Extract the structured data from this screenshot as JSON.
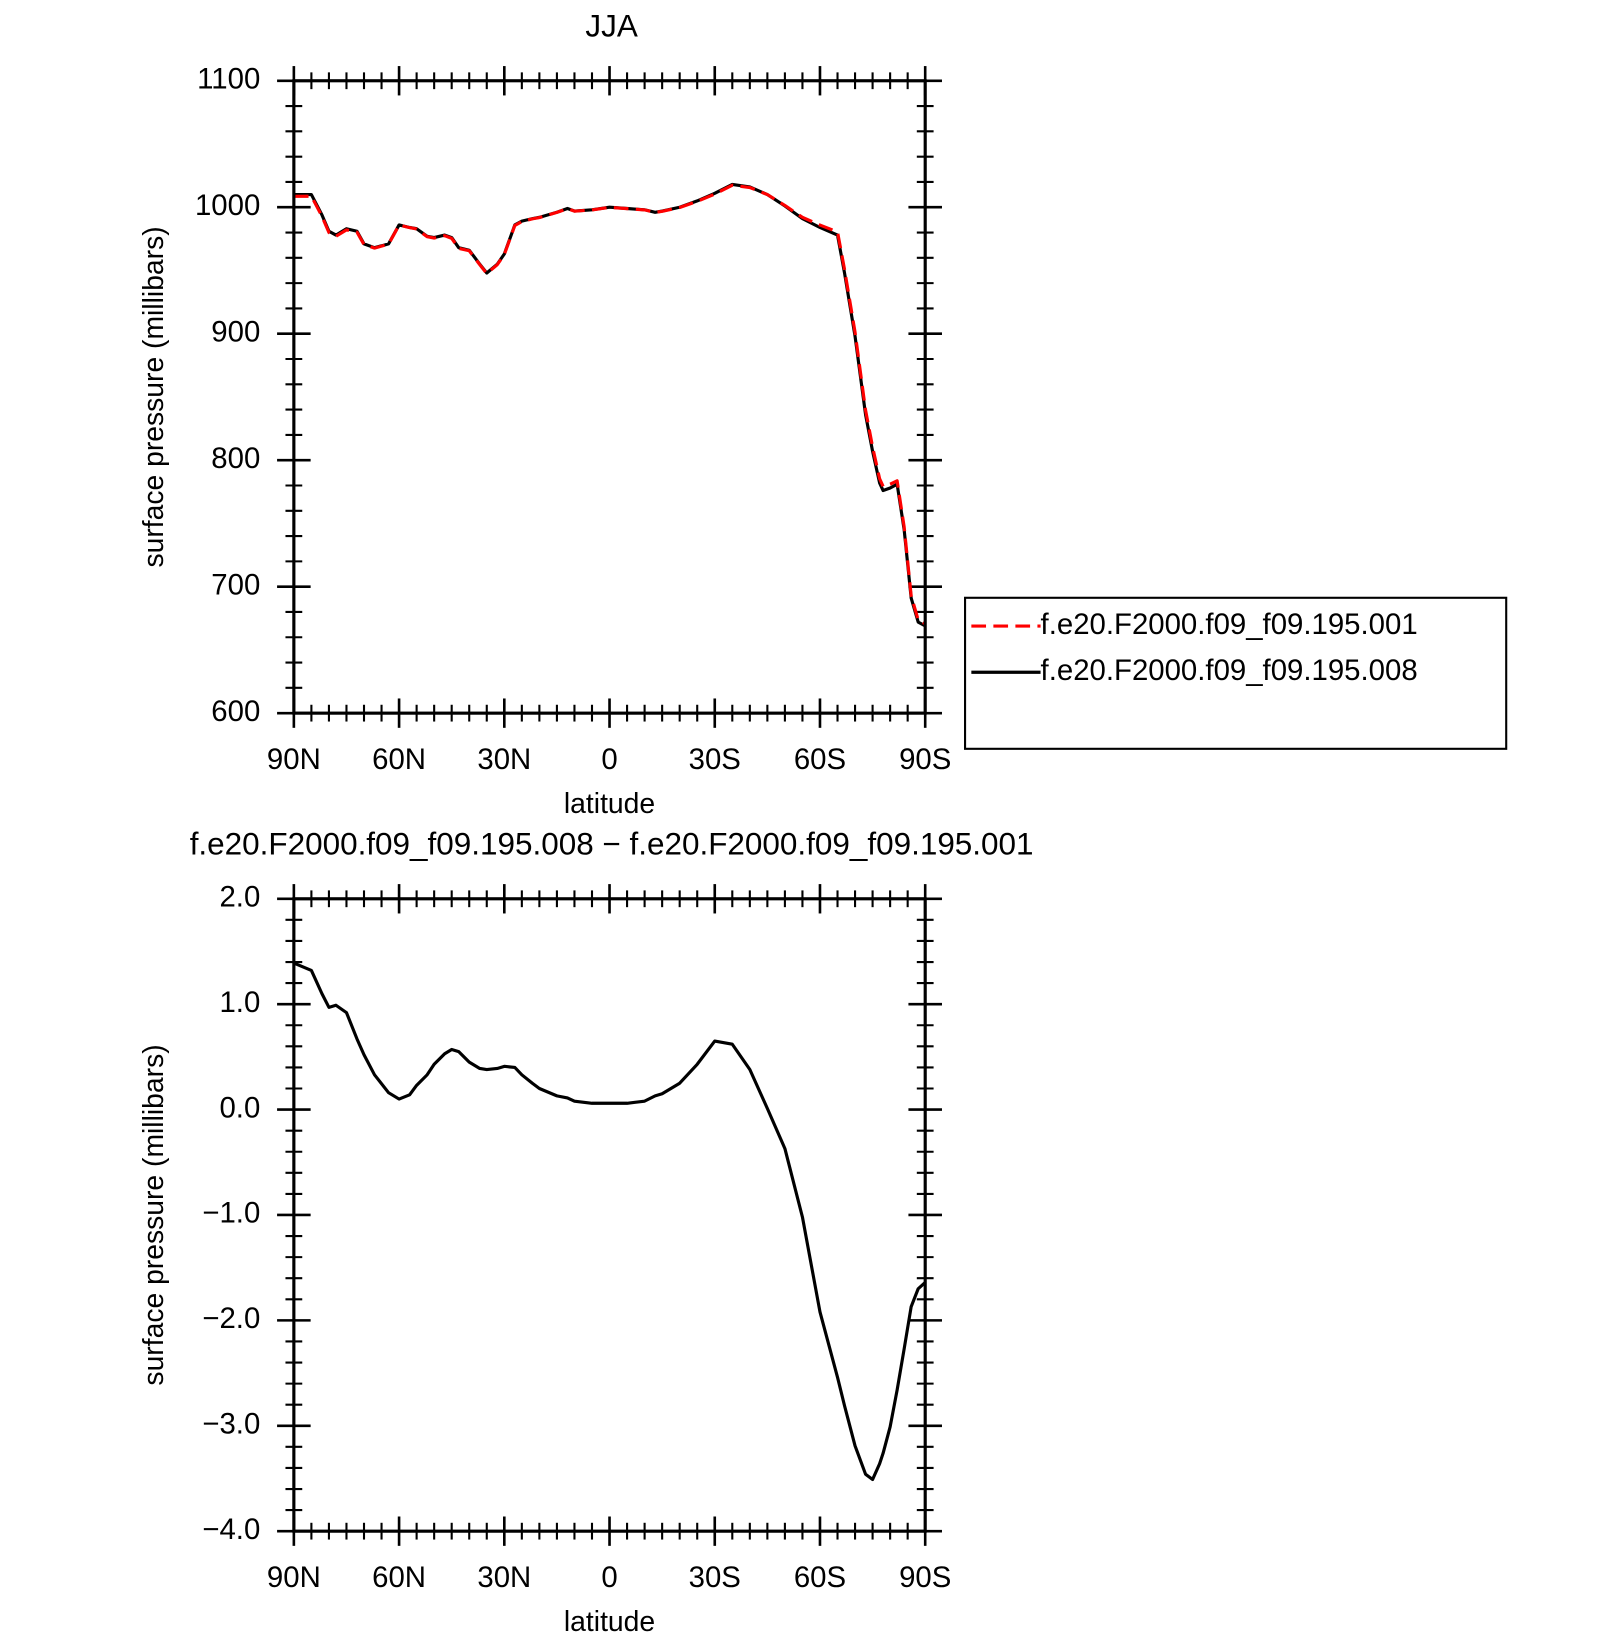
{
  "chart_data": [
    {
      "type": "line",
      "title": "JJA",
      "x_label": "latitude",
      "y_label": "surface pressure (millibars)",
      "x": [
        90,
        85,
        82,
        80,
        78,
        75,
        72,
        70,
        67,
        63,
        60,
        57,
        55,
        52,
        50,
        47,
        45,
        43,
        40,
        37,
        35,
        32,
        30,
        27,
        25,
        22,
        20,
        15,
        12,
        10,
        5,
        0,
        -5,
        -10,
        -13,
        -15,
        -20,
        -25,
        -30,
        -35,
        -40,
        -45,
        -50,
        -55,
        -60,
        -65,
        -67,
        -70,
        -73,
        -75,
        -77,
        -78,
        -80,
        -82,
        -84,
        -86,
        -88,
        -90
      ],
      "series": [
        {
          "name": "f.e20.F2000.f09_f09.195.001",
          "color": "#ff0000",
          "linestyle": "dashed",
          "values": [
            1008.6,
            1008.7,
            992.9,
            980.0,
            977.0,
            982.1,
            980.3,
            970.5,
            967.7,
            970.8,
            985.9,
            983.9,
            982.8,
            976.7,
            975.6,
            977.5,
            975.4,
            967.5,
            965.6,
            954.6,
            947.6,
            954.6,
            962.6,
            985.6,
            988.7,
            990.8,
            991.8,
            995.9,
            998.9,
            996.9,
            997.9,
            999.9,
            998.9,
            997.9,
            995.9,
            996.8,
            999.8,
            1004.6,
            1010.4,
            1017.4,
            1015.6,
            1010.0,
            1001.4,
            992.0,
            985.9,
            980.5,
            950.8,
            901.2,
            839.5,
            810.5,
            785.4,
            779.3,
            781.0,
            783.7,
            747.3,
            692.9,
            673.7,
            670.6
          ]
        },
        {
          "name": "f.e20.F2000.f09_f09.195.008",
          "color": "#000000",
          "linestyle": "solid",
          "values": [
            1010,
            1010,
            994,
            981,
            978,
            983,
            981,
            971,
            968,
            971,
            986,
            984,
            983,
            977,
            976,
            978,
            976,
            968,
            966,
            955,
            948,
            955,
            963,
            986,
            989,
            991,
            992,
            996,
            999,
            997,
            998,
            1000,
            999,
            998,
            996,
            997,
            1000,
            1005,
            1011,
            1018,
            1016,
            1010,
            1001,
            991,
            984,
            978,
            948,
            898,
            836,
            807,
            782,
            776,
            778,
            781,
            745,
            691,
            672,
            669
          ]
        }
      ],
      "xlim": [
        90,
        -90
      ],
      "xticks": [
        {
          "value": 90,
          "label": "90N"
        },
        {
          "value": 60,
          "label": "60N"
        },
        {
          "value": 30,
          "label": "30N"
        },
        0,
        {
          "value": -30,
          "label": "30S"
        },
        {
          "value": -60,
          "label": "60S"
        },
        {
          "value": -90,
          "label": "90S"
        }
      ],
      "ylim": [
        600,
        1100
      ],
      "yticks": [
        600,
        700,
        800,
        900,
        1000,
        1100
      ],
      "legend": "right"
    },
    {
      "type": "line",
      "title": "f.e20.F2000.f09_f09.195.008 − f.e20.F2000.f09_f09.195.001",
      "x_label": "latitude",
      "y_label": "surface pressure (millibars)",
      "x": [
        90,
        85,
        82,
        80,
        78,
        75,
        72,
        70,
        67,
        63,
        60,
        57,
        55,
        52,
        50,
        47,
        45,
        43,
        40,
        37,
        35,
        32,
        30,
        27,
        25,
        22,
        20,
        15,
        12,
        10,
        5,
        0,
        -5,
        -10,
        -13,
        -15,
        -20,
        -25,
        -30,
        -35,
        -40,
        -45,
        -50,
        -55,
        -60,
        -65,
        -67,
        -70,
        -73,
        -75,
        -77,
        -78,
        -80,
        -82,
        -84,
        -86,
        -88,
        -90
      ],
      "series": [
        {
          "color": "#000000",
          "linestyle": "solid",
          "values": [
            1.39,
            1.32,
            1.1,
            0.97,
            0.99,
            0.92,
            0.67,
            0.52,
            0.33,
            0.16,
            0.1,
            0.14,
            0.23,
            0.33,
            0.43,
            0.53,
            0.57,
            0.55,
            0.45,
            0.39,
            0.38,
            0.39,
            0.41,
            0.4,
            0.33,
            0.25,
            0.2,
            0.13,
            0.11,
            0.08,
            0.06,
            0.06,
            0.06,
            0.08,
            0.13,
            0.15,
            0.25,
            0.43,
            0.65,
            0.62,
            0.38,
            0.01,
            -0.37,
            -1.02,
            -1.92,
            -2.54,
            -2.81,
            -3.19,
            -3.46,
            -3.51,
            -3.36,
            -3.26,
            -3.01,
            -2.66,
            -2.27,
            -1.87,
            -1.7,
            -1.64
          ]
        }
      ],
      "xlim": [
        90,
        -90
      ],
      "xticks": [
        {
          "value": 90,
          "label": "90N"
        },
        {
          "value": 60,
          "label": "60N"
        },
        {
          "value": 30,
          "label": "30N"
        },
        0,
        {
          "value": -30,
          "label": "30S"
        },
        {
          "value": -60,
          "label": "60S"
        },
        {
          "value": -90,
          "label": "90S"
        }
      ],
      "ylim": [
        -4,
        2
      ],
      "yticks": [
        {
          "value": -4,
          "label": "−4.0"
        },
        {
          "value": -3,
          "label": "−3.0"
        },
        {
          "value": -2,
          "label": "−2.0"
        },
        {
          "value": -1,
          "label": "−1.0"
        },
        {
          "value": 0,
          "label": "0.0"
        },
        {
          "value": 1,
          "label": "1.0"
        },
        {
          "value": 2,
          "label": "2.0"
        }
      ]
    }
  ]
}
